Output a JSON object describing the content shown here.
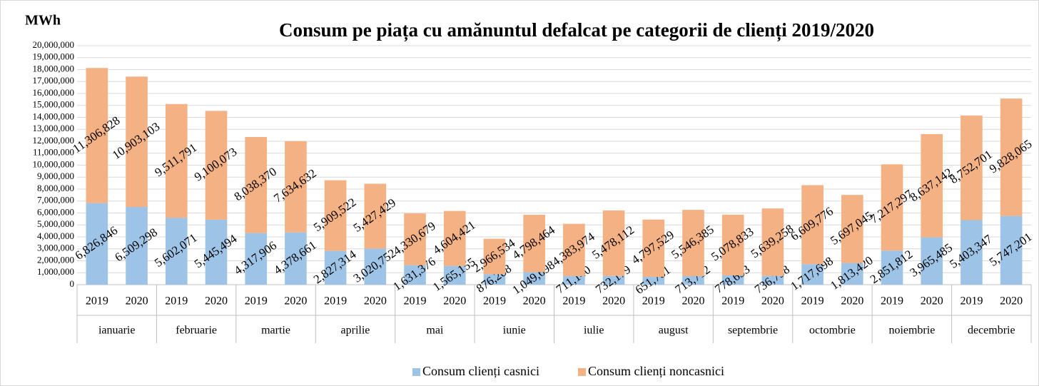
{
  "chart_data": {
    "type": "stacked_bar",
    "title": "Consum pe piața cu amănuntul defalcat pe categorii de clienți 2019/2020",
    "y_axis_label": "MWh",
    "categories": [
      "2019",
      "2020",
      "2019",
      "2020",
      "2019",
      "2020",
      "2019",
      "2020",
      "2019",
      "2020",
      "2019",
      "2020",
      "2019",
      "2020",
      "2019",
      "2020",
      "2019",
      "2020",
      "2019",
      "2020",
      "2019",
      "2020",
      "2019",
      "2020"
    ],
    "groups": [
      "ianuarie",
      "februarie",
      "martie",
      "aprilie",
      "mai",
      "iunie",
      "iulie",
      "august",
      "septembrie",
      "octombrie",
      "noiembrie",
      "decembrie"
    ],
    "series": [
      {
        "name": "Consum clienți casnici",
        "color": "#9dc3e6",
        "values": [
          6826846,
          6509298,
          5602071,
          5445494,
          4317906,
          4378661,
          2827314,
          3020752,
          1631376,
          1565155,
          876288,
          1049698,
          711140,
          732179,
          651781,
          713712,
          778653,
          736798,
          1717698,
          1813420,
          2851812,
          3965485,
          5403347,
          5747201
        ],
        "value_labels": [
          "6,826,846",
          "6,509,298",
          "5,602,071",
          "5,445,494",
          "4,317,906",
          "4,378,661",
          "2,827,314",
          "3,020,752",
          "1,631,376",
          "1,565,155",
          "876,288",
          "1,049,698",
          "711,140",
          "732,179",
          "651,781",
          "713,712",
          "778,653",
          "736,798",
          "1,717,698",
          "1,813,420",
          "2,851,812",
          "3,965,485",
          "5,403,347",
          "5,747,201"
        ]
      },
      {
        "name": "Consum clienți noncasnici",
        "color": "#f4b183",
        "values": [
          11306828,
          10903103,
          9511791,
          9100073,
          8038370,
          7634632,
          5909522,
          5427429,
          4330679,
          4604421,
          2966534,
          4798464,
          4383974,
          5478112,
          4797529,
          5546385,
          5078833,
          5639258,
          6609776,
          5697045,
          7217297,
          8637142,
          8752701,
          9828065
        ],
        "value_labels": [
          "11,306,828",
          "10,903,103",
          "9,511,791",
          "9,100,073",
          "8,038,370",
          "7,634,632",
          "5,909,522",
          "5,427,429",
          "4,330,679",
          "4,604,421",
          "2,966,534",
          "4,798,464",
          "4,383,974",
          "5,478,112",
          "4,797,529",
          "5,546,385",
          "5,078,833",
          "5,639,258",
          "6,609,776",
          "5,697,045",
          "7,217,297",
          "8,637,142",
          "8,752,701",
          "9,828,065"
        ]
      }
    ],
    "ylim": [
      0,
      20000000
    ],
    "yticks": [
      0,
      {
        "value": 1000000,
        "label": "1,000,000"
      },
      {
        "value": 2000000,
        "label": "2,000,000"
      },
      {
        "value": 3000000,
        "label": "3,000,000"
      },
      {
        "value": 4000000,
        "label": "4,000,000"
      },
      {
        "value": 5000000,
        "label": "5,000,000"
      },
      {
        "value": 6000000,
        "label": "6,000,000"
      },
      {
        "value": 7000000,
        "label": "7,000,000"
      },
      {
        "value": 8000000,
        "label": "8,000,000"
      },
      {
        "value": 9000000,
        "label": "9,000,000"
      },
      {
        "value": 10000000,
        "label": "10,000,000"
      },
      {
        "value": 11000000,
        "label": "11,000,000"
      },
      {
        "value": 12000000,
        "label": "12,000,000"
      },
      {
        "value": 13000000,
        "label": "13,000,000"
      },
      {
        "value": 14000000,
        "label": "14,000,000"
      },
      {
        "value": 15000000,
        "label": "15,000,000"
      },
      {
        "value": 16000000,
        "label": "16,000,000"
      },
      {
        "value": 17000000,
        "label": "17,000,000"
      },
      {
        "value": 18000000,
        "label": "18,000,000"
      },
      {
        "value": 19000000,
        "label": "19,000,000"
      },
      {
        "value": 20000000,
        "label": "20,000,000"
      }
    ],
    "grid": true,
    "legend": "bottom"
  }
}
